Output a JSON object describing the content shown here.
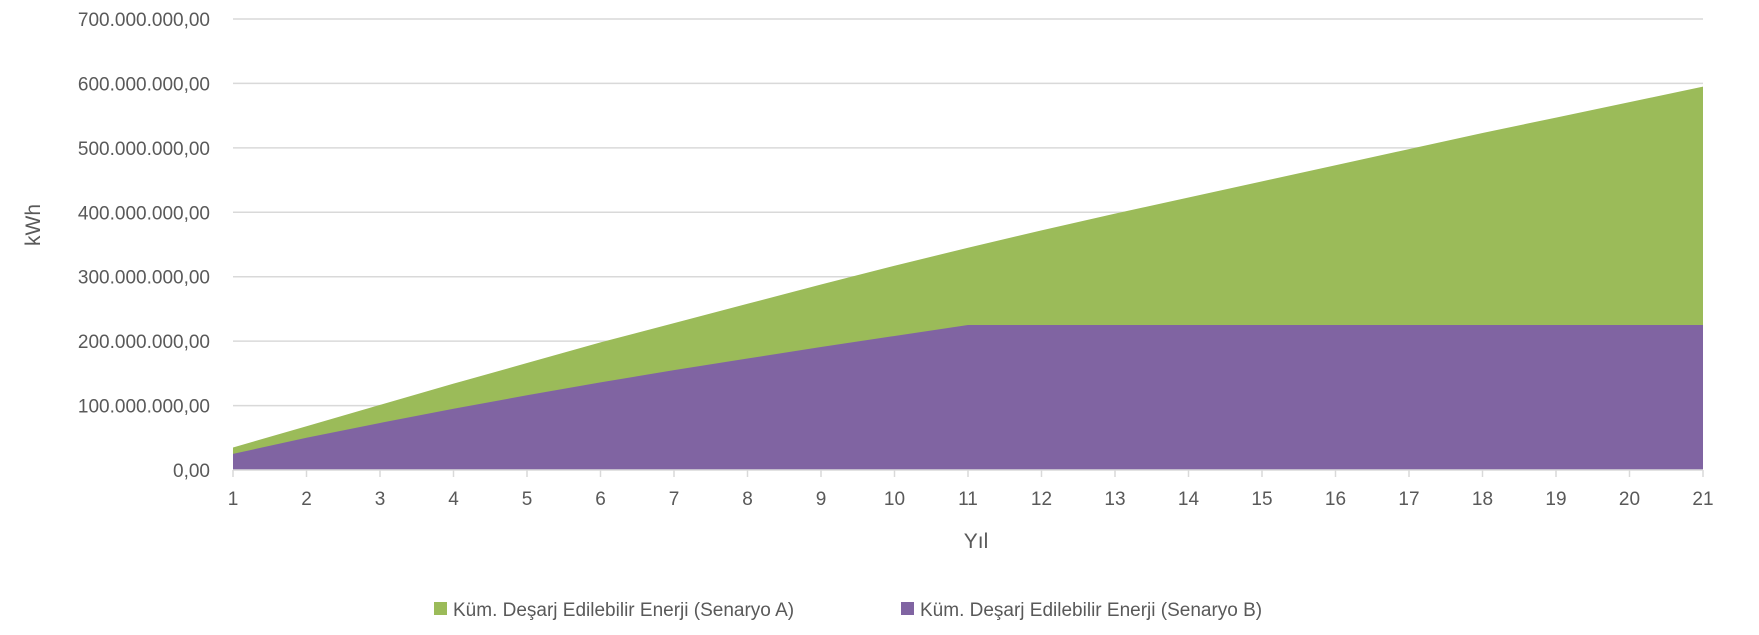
{
  "chart_data": {
    "type": "area",
    "title": "",
    "xlabel": "Yıl",
    "ylabel": "kWh",
    "x": [
      1,
      2,
      3,
      4,
      5,
      6,
      7,
      8,
      9,
      10,
      11,
      12,
      13,
      14,
      15,
      16,
      17,
      18,
      19,
      20,
      21
    ],
    "ylim": [
      0,
      700000000
    ],
    "yticks": [
      0,
      100000000,
      200000000,
      300000000,
      400000000,
      500000000,
      600000000,
      700000000
    ],
    "ytick_labels": [
      "0,00",
      "100.000.000,00",
      "200.000.000,00",
      "300.000.000,00",
      "400.000.000,00",
      "500.000.000,00",
      "600.000.000,00",
      "700.000.000,00"
    ],
    "grid": true,
    "legend_position": "bottom",
    "series": [
      {
        "name": "Küm. Deşarj Edilebilir Enerji (Senaryo A)",
        "color": "#9bbb59",
        "values": [
          35000000,
          68000000,
          101000000,
          134000000,
          166000000,
          198000000,
          228000000,
          258000000,
          288000000,
          317000000,
          345000000,
          372000000,
          398000000,
          423000000,
          448000000,
          473000000,
          498000000,
          523000000,
          547000000,
          571000000,
          595000000
        ]
      },
      {
        "name": "Küm. Deşarj Edilebilir Enerji (Senaryo B)",
        "color": "#8064a2",
        "values": [
          25000000,
          50000000,
          73000000,
          95000000,
          116000000,
          136000000,
          155000000,
          173000000,
          191000000,
          208000000,
          225000000,
          225000000,
          225000000,
          225000000,
          225000000,
          225000000,
          225000000,
          225000000,
          225000000,
          225000000,
          225000000
        ]
      }
    ]
  }
}
